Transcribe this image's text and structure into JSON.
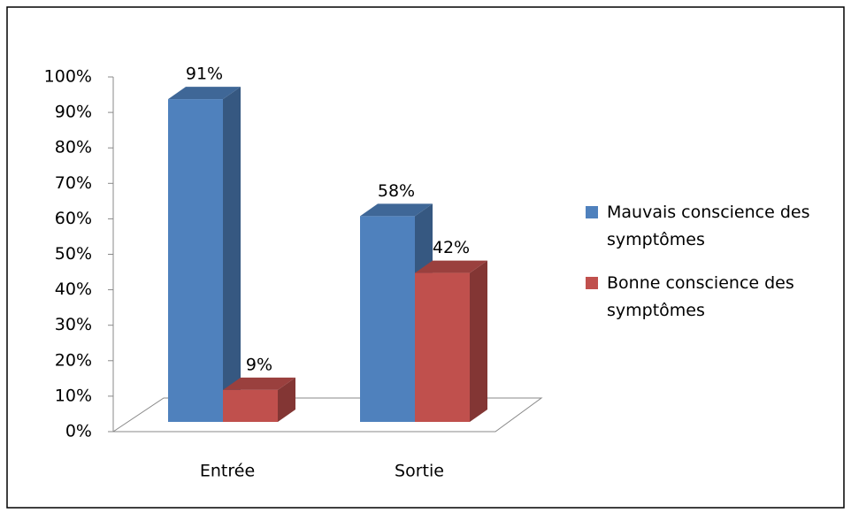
{
  "chart_data": {
    "type": "bar3d",
    "categories": [
      "Entrée",
      "Sortie"
    ],
    "series": [
      {
        "name": "Mauvais conscience des symptômes",
        "color": "#4f81bd",
        "values": [
          91,
          58
        ],
        "value_labels": [
          "91%",
          "58%"
        ]
      },
      {
        "name": "Bonne conscience des symptômes",
        "color": "#c0504d",
        "values": [
          9,
          42
        ],
        "value_labels": [
          "9%",
          "42%"
        ]
      }
    ],
    "ylim": [
      0,
      100
    ],
    "yticks": [
      {
        "value": 0,
        "label": "0%"
      },
      {
        "value": 10,
        "label": "10%"
      },
      {
        "value": 20,
        "label": "20%"
      },
      {
        "value": 30,
        "label": "30%"
      },
      {
        "value": 40,
        "label": "40%"
      },
      {
        "value": 50,
        "label": "50%"
      },
      {
        "value": 60,
        "label": "60%"
      },
      {
        "value": 70,
        "label": "70%"
      },
      {
        "value": 80,
        "label": "80%"
      },
      {
        "value": 90,
        "label": "90%"
      },
      {
        "value": 100,
        "label": "100%"
      }
    ],
    "legend": "right"
  }
}
